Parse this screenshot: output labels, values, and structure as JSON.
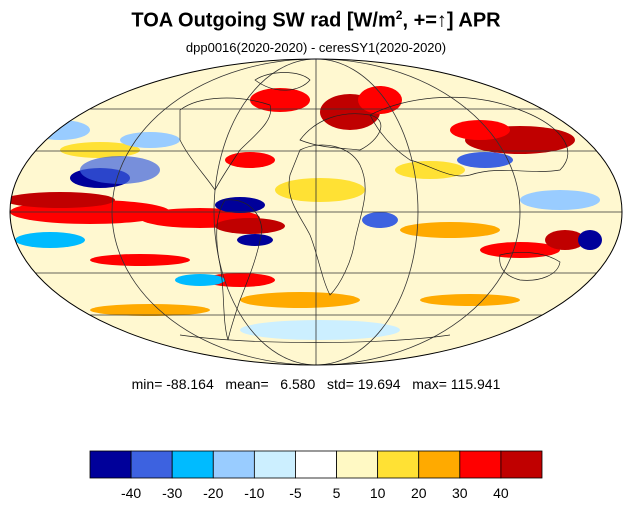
{
  "title": "TOA Outgoing SW rad [W/m², +=↑] APR",
  "title_parts": {
    "main": "TOA Outgoing SW rad [W/m",
    "sup": "2",
    "tail": ", +=↑] APR"
  },
  "subtitle": "dpp0016(2020-2020) - ceresSY1(2020-2020)",
  "stats": {
    "min_label": "min=",
    "min": "-88.164",
    "mean_label": "mean=",
    "mean": "6.580",
    "std_label": "std=",
    "std": "19.694",
    "max_label": "max=",
    "max": "115.941"
  },
  "map": {
    "projection": "mollweide",
    "field": "TOA outgoing SW radiation difference",
    "units": "W/m2"
  },
  "colorbar": {
    "colors": [
      "#00009a",
      "#3d62e0",
      "#00bbff",
      "#99ccff",
      "#ccefff",
      "#ffffff",
      "#fff9c4",
      "#ffe134",
      "#ffaa00",
      "#ff0000",
      "#c00000"
    ],
    "tick_labels": [
      "-40",
      "-30",
      "-20",
      "-10",
      "-5",
      "5",
      "10",
      "20",
      "30",
      "40"
    ]
  }
}
